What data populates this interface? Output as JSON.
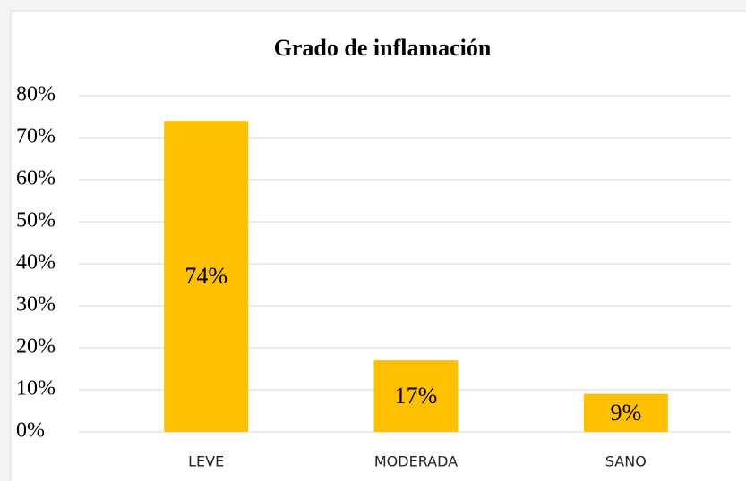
{
  "chart_data": {
    "type": "bar",
    "title": "Grado de inflamación",
    "categories": [
      "LEVE",
      "MODERADA",
      "SANO"
    ],
    "values": [
      74,
      17,
      9
    ],
    "value_labels": [
      "74%",
      "17%",
      "9%"
    ],
    "color": "#ffc000",
    "ylim": [
      0,
      80
    ],
    "yticks": [
      {
        "value": 0,
        "label": "0%"
      },
      {
        "value": 10,
        "label": "10%"
      },
      {
        "value": 20,
        "label": "20%"
      },
      {
        "value": 30,
        "label": "30%"
      },
      {
        "value": 40,
        "label": "40%"
      },
      {
        "value": 50,
        "label": "50%"
      },
      {
        "value": 60,
        "label": "60%"
      },
      {
        "value": 70,
        "label": "70%"
      },
      {
        "value": 80,
        "label": "80%"
      }
    ],
    "grid": true
  }
}
